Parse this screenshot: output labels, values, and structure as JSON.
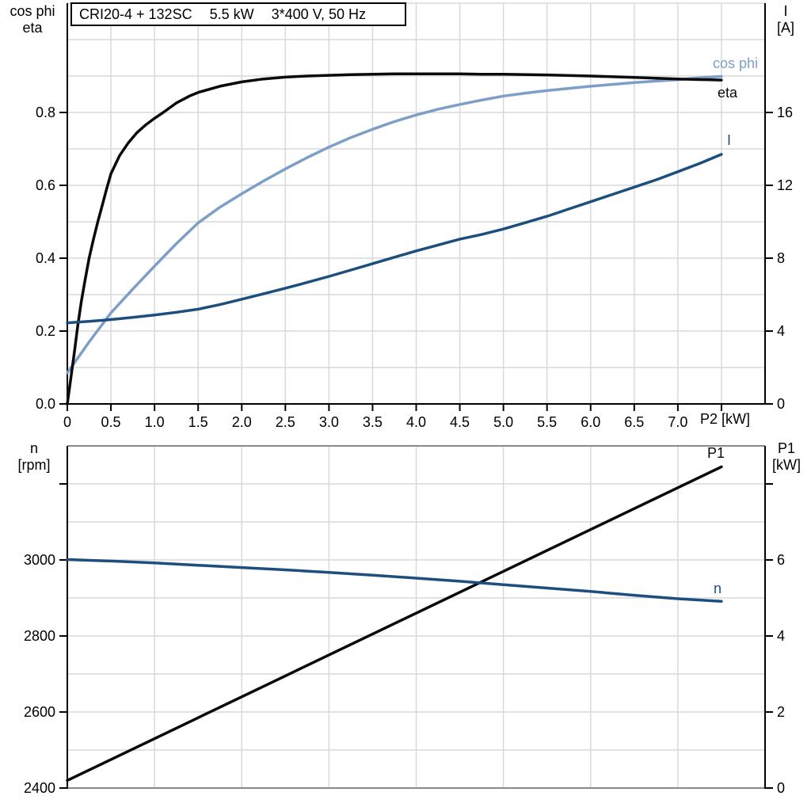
{
  "colors": {
    "black": "#0a0a0a",
    "dark_blue": "#1c4e7e",
    "light_blue": "#7d9fc7",
    "grid": "#d7d9dc",
    "frame_gray": "#86898e",
    "axis": "#000000"
  },
  "chart_data": [
    {
      "type": "line",
      "title": "CRI20-4 + 132SC  5.5 kW  3*400 V, 50 Hz",
      "title_parts": [
        "CRI20-4 + 132SC",
        "5.5 kW",
        "3*400 V, 50 Hz"
      ],
      "xlabel": "P2 [kW]",
      "x_range": [
        0,
        8
      ],
      "x_grid_step": 0.5,
      "x_ticks": [
        {
          "v": 0,
          "label": "0"
        },
        {
          "v": 0.5,
          "label": "0.5"
        },
        {
          "v": 1,
          "label": "1.0"
        },
        {
          "v": 1.5,
          "label": "1.5"
        },
        {
          "v": 2,
          "label": "2.0"
        },
        {
          "v": 2.5,
          "label": "2.5"
        },
        {
          "v": 3,
          "label": "3.0"
        },
        {
          "v": 3.5,
          "label": "3.5"
        },
        {
          "v": 4,
          "label": "4.0"
        },
        {
          "v": 4.5,
          "label": "4.5"
        },
        {
          "v": 5,
          "label": "5.0"
        },
        {
          "v": 5.5,
          "label": "5.5"
        },
        {
          "v": 6,
          "label": "6.0"
        },
        {
          "v": 6.5,
          "label": "6.5"
        },
        {
          "v": 7,
          "label": "7.0"
        },
        {
          "v": 7.5,
          "label": ""
        }
      ],
      "y_left": {
        "label": "cos phi / eta",
        "title_lines": [
          "cos phi",
          "eta"
        ],
        "range": [
          0,
          1.1
        ],
        "grid_step": 0.1,
        "ticks": [
          {
            "v": 0,
            "label": "0.0"
          },
          {
            "v": 0.2,
            "label": "0.2"
          },
          {
            "v": 0.4,
            "label": "0.4"
          },
          {
            "v": 0.6,
            "label": "0.6"
          },
          {
            "v": 0.8,
            "label": "0.8"
          }
        ]
      },
      "y_right": {
        "label": "I [A]",
        "title_lines": [
          "I",
          "[A]"
        ],
        "range": [
          0,
          22
        ],
        "ticks": [
          {
            "v": 0,
            "label": "0"
          },
          {
            "v": 4,
            "label": "4"
          },
          {
            "v": 8,
            "label": "8"
          },
          {
            "v": 12,
            "label": "12"
          },
          {
            "v": 16,
            "label": "16"
          }
        ]
      },
      "series": [
        {
          "name": "cos-phi",
          "label": "cos phi",
          "axis": "left",
          "color": "#7d9fc7",
          "points": [
            [
              0,
              0.085
            ],
            [
              0.25,
              0.17
            ],
            [
              0.5,
              0.25
            ],
            [
              0.75,
              0.315
            ],
            [
              1,
              0.378
            ],
            [
              1.25,
              0.44
            ],
            [
              1.5,
              0.497
            ],
            [
              1.75,
              0.54
            ],
            [
              2,
              0.577
            ],
            [
              2.25,
              0.612
            ],
            [
              2.5,
              0.645
            ],
            [
              2.75,
              0.676
            ],
            [
              3,
              0.705
            ],
            [
              3.25,
              0.731
            ],
            [
              3.5,
              0.754
            ],
            [
              3.75,
              0.775
            ],
            [
              4,
              0.793
            ],
            [
              4.25,
              0.809
            ],
            [
              4.5,
              0.822
            ],
            [
              4.75,
              0.834
            ],
            [
              5,
              0.845
            ],
            [
              5.25,
              0.853
            ],
            [
              5.5,
              0.86
            ],
            [
              5.75,
              0.866
            ],
            [
              6,
              0.872
            ],
            [
              6.25,
              0.877
            ],
            [
              6.5,
              0.882
            ],
            [
              6.75,
              0.886
            ],
            [
              7,
              0.89
            ],
            [
              7.25,
              0.895
            ],
            [
              7.5,
              0.899
            ]
          ]
        },
        {
          "name": "eta",
          "label": "eta",
          "axis": "left",
          "color": "#0a0a0a",
          "points": [
            [
              0,
              0
            ],
            [
              0.04,
              0.07
            ],
            [
              0.08,
              0.14
            ],
            [
              0.12,
              0.215
            ],
            [
              0.16,
              0.28
            ],
            [
              0.2,
              0.335
            ],
            [
              0.25,
              0.4
            ],
            [
              0.3,
              0.452
            ],
            [
              0.35,
              0.5
            ],
            [
              0.4,
              0.545
            ],
            [
              0.45,
              0.59
            ],
            [
              0.5,
              0.632
            ],
            [
              0.6,
              0.682
            ],
            [
              0.7,
              0.717
            ],
            [
              0.8,
              0.745
            ],
            [
              0.9,
              0.766
            ],
            [
              1,
              0.784
            ],
            [
              1.1,
              0.8
            ],
            [
              1.25,
              0.826
            ],
            [
              1.4,
              0.845
            ],
            [
              1.5,
              0.855
            ],
            [
              1.75,
              0.872
            ],
            [
              2,
              0.884
            ],
            [
              2.25,
              0.892
            ],
            [
              2.5,
              0.897
            ],
            [
              2.75,
              0.9
            ],
            [
              3,
              0.902
            ],
            [
              3.25,
              0.904
            ],
            [
              3.5,
              0.905
            ],
            [
              3.75,
              0.906
            ],
            [
              4,
              0.906
            ],
            [
              4.5,
              0.906
            ],
            [
              4.75,
              0.905
            ],
            [
              5,
              0.905
            ],
            [
              5.5,
              0.903
            ],
            [
              6,
              0.9
            ],
            [
              6.5,
              0.896
            ],
            [
              7,
              0.892
            ],
            [
              7.5,
              0.889
            ]
          ]
        },
        {
          "name": "current",
          "label": "I",
          "axis": "right",
          "color": "#1c4e7e",
          "points": [
            [
              0,
              4.45
            ],
            [
              0.25,
              4.53
            ],
            [
              0.5,
              4.63
            ],
            [
              0.75,
              4.75
            ],
            [
              1,
              4.88
            ],
            [
              1.25,
              5.03
            ],
            [
              1.5,
              5.2
            ],
            [
              1.75,
              5.45
            ],
            [
              2,
              5.75
            ],
            [
              2.25,
              6.05
            ],
            [
              2.5,
              6.35
            ],
            [
              2.75,
              6.67
            ],
            [
              3,
              7.0
            ],
            [
              3.25,
              7.35
            ],
            [
              3.5,
              7.7
            ],
            [
              3.75,
              8.05
            ],
            [
              4,
              8.4
            ],
            [
              4.25,
              8.72
            ],
            [
              4.5,
              9.05
            ],
            [
              4.75,
              9.3
            ],
            [
              5,
              9.6
            ],
            [
              5.25,
              9.95
            ],
            [
              5.5,
              10.3
            ],
            [
              5.75,
              10.7
            ],
            [
              6,
              11.1
            ],
            [
              6.25,
              11.5
            ],
            [
              6.5,
              11.9
            ],
            [
              6.75,
              12.3
            ],
            [
              7,
              12.75
            ],
            [
              7.25,
              13.2
            ],
            [
              7.5,
              13.7
            ]
          ]
        }
      ],
      "box": {
        "l": 85,
        "r": 966,
        "t": 4,
        "b": 510
      },
      "frame": "plain"
    },
    {
      "type": "line",
      "title": "",
      "xlabel": "",
      "x_range": [
        0,
        8
      ],
      "x_grid_step": 1.0,
      "x_ticks": [],
      "y_left": {
        "label": "n [rpm]",
        "title_lines": [
          "n",
          "[rpm]"
        ],
        "range": [
          2400,
          3300
        ],
        "grid_step": 100,
        "ticks": [
          {
            "v": 2400,
            "label": "2400"
          },
          {
            "v": 2600,
            "label": "2600"
          },
          {
            "v": 2800,
            "label": "2800"
          },
          {
            "v": 3000,
            "label": "3000"
          },
          {
            "v": 3200,
            "label": ""
          }
        ]
      },
      "y_right": {
        "label": "P1 [kW]",
        "title_lines": [
          "P1",
          "[kW]"
        ],
        "range": [
          0,
          9
        ],
        "ticks": [
          {
            "v": 0,
            "label": "0"
          },
          {
            "v": 2,
            "label": "2"
          },
          {
            "v": 4,
            "label": "4"
          },
          {
            "v": 6,
            "label": "6"
          },
          {
            "v": 8,
            "label": ""
          }
        ]
      },
      "series": [
        {
          "name": "p1",
          "label": "P1",
          "axis": "right",
          "color": "#0a0a0a",
          "points": [
            [
              0,
              0.2
            ],
            [
              2.5,
              2.95
            ],
            [
              5,
              5.7
            ],
            [
              7.5,
              8.45
            ]
          ]
        },
        {
          "name": "n",
          "label": "n",
          "axis": "left",
          "color": "#1c4e7e",
          "points": [
            [
              0,
              3001
            ],
            [
              0.5,
              2997
            ],
            [
              1,
              2992
            ],
            [
              1.5,
              2986
            ],
            [
              2,
              2980
            ],
            [
              2.5,
              2974
            ],
            [
              3,
              2967
            ],
            [
              3.5,
              2960
            ],
            [
              4,
              2952
            ],
            [
              4.5,
              2944
            ],
            [
              5,
              2935
            ],
            [
              5.5,
              2926
            ],
            [
              6,
              2917
            ],
            [
              6.5,
              2907
            ],
            [
              7,
              2898
            ],
            [
              7.5,
              2891
            ]
          ]
        }
      ],
      "box": {
        "l": 85,
        "r": 966,
        "t": 563,
        "b": 995
      },
      "frame": "gray"
    }
  ]
}
